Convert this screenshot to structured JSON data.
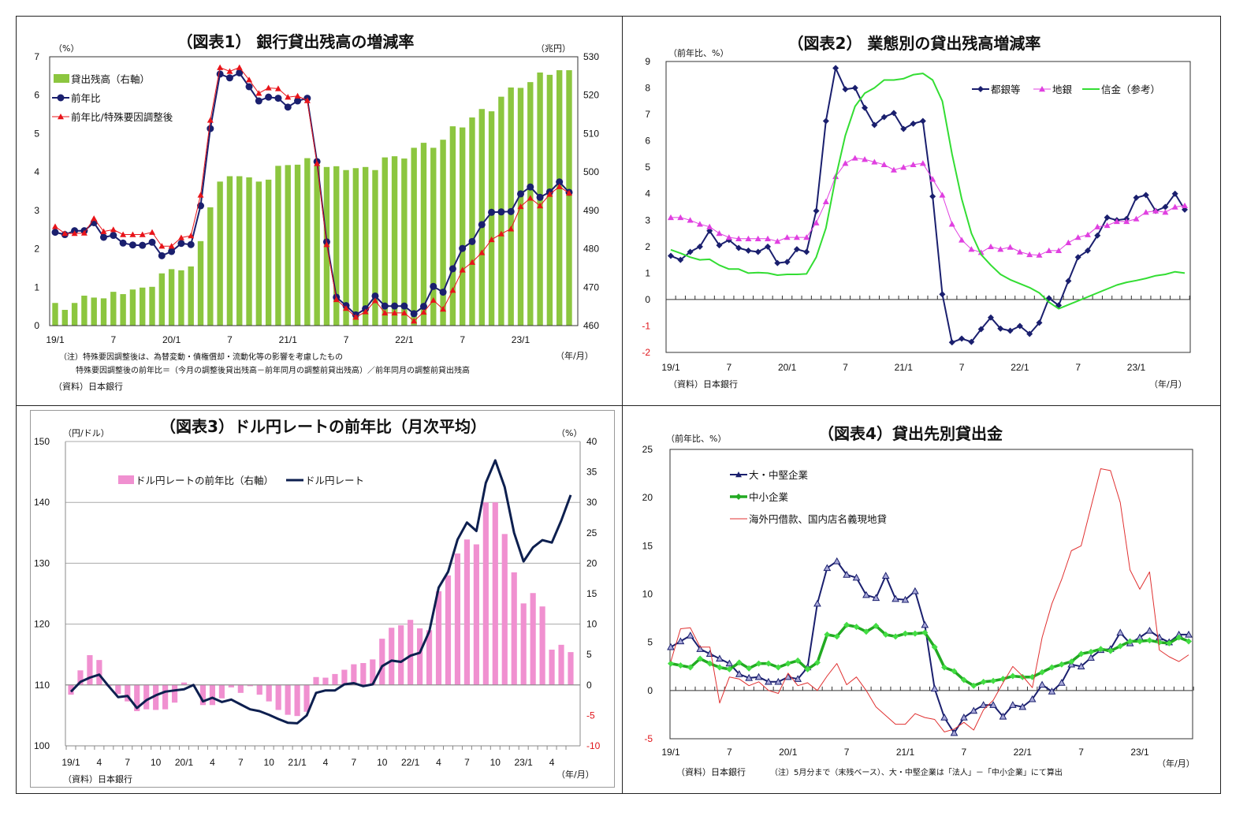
{
  "chart_data": [
    {
      "type": "bar+line",
      "title": "（図表1） 銀行貸出残高の増減率",
      "y_left_unit": "（%）",
      "y_right_unit": "（兆円）",
      "x_unit": "（年/月）",
      "ylim_left": [
        0,
        7
      ],
      "ylim_right": [
        460,
        530
      ],
      "y_left_ticks": [
        "0",
        "1",
        "2",
        "3",
        "4",
        "5",
        "6",
        "7"
      ],
      "y_right_ticks": [
        "460",
        "470",
        "480",
        "490",
        "500",
        "510",
        "520",
        "530"
      ],
      "x_tick_labels": [
        "19/1",
        "7",
        "20/1",
        "7",
        "21/1",
        "7",
        "22/1",
        "7",
        "23/1"
      ],
      "grid": false,
      "legend": "top-left",
      "x": [
        "19/1",
        "19/2",
        "19/3",
        "19/4",
        "19/5",
        "19/6",
        "19/7",
        "19/8",
        "19/9",
        "19/10",
        "19/11",
        "19/12",
        "20/1",
        "20/2",
        "20/3",
        "20/4",
        "20/5",
        "20/6",
        "20/7",
        "20/8",
        "20/9",
        "20/10",
        "20/11",
        "20/12",
        "21/1",
        "21/2",
        "21/3",
        "21/4",
        "21/5",
        "21/6",
        "21/7",
        "21/8",
        "21/9",
        "21/10",
        "21/11",
        "21/12",
        "22/1",
        "22/2",
        "22/3",
        "22/4",
        "22/5",
        "22/6",
        "22/7",
        "22/8",
        "22/9",
        "22/10",
        "22/11",
        "22/12",
        "23/1",
        "23/2",
        "23/3",
        "23/4",
        "23/5",
        "23/6"
      ],
      "series": [
        {
          "name": "貸出残高（右軸）",
          "type": "bar",
          "axis": "right",
          "color": "#8cc63f",
          "values": [
            465.9,
            464.1,
            465.9,
            467.8,
            467.3,
            467.1,
            468.8,
            468.2,
            469.4,
            469.9,
            470.1,
            473.6,
            474.7,
            474.4,
            475.4,
            482.0,
            490.8,
            497.5,
            498.9,
            498.9,
            498.6,
            497.5,
            498.0,
            501.6,
            501.8,
            501.9,
            503.6,
            501.7,
            501.3,
            501.5,
            500.5,
            501.0,
            501.3,
            500.5,
            503.8,
            504.1,
            503.5,
            506.3,
            507.6,
            506.3,
            508.4,
            511.9,
            511.6,
            514.2,
            516.4,
            515.8,
            519.6,
            522.0,
            521.9,
            523.4,
            525.9,
            525.3,
            526.5,
            526.5
          ]
        },
        {
          "name": "前年比",
          "type": "line",
          "axis": "left",
          "marker": "circle",
          "color": "#1a1f6e",
          "values": [
            2.43,
            2.37,
            2.47,
            2.47,
            2.68,
            2.3,
            2.35,
            2.15,
            2.1,
            2.09,
            2.17,
            1.82,
            1.93,
            2.14,
            2.11,
            3.12,
            5.13,
            6.55,
            6.45,
            6.58,
            6.22,
            5.85,
            5.95,
            5.92,
            5.69,
            5.85,
            5.92,
            4.27,
            2.18,
            0.74,
            0.52,
            0.28,
            0.44,
            0.77,
            0.51,
            0.51,
            0.51,
            0.31,
            0.5,
            1.02,
            0.87,
            1.48,
            2.01,
            2.19,
            2.63,
            2.95,
            2.96,
            2.97,
            3.43,
            3.61,
            3.34,
            3.48,
            3.74,
            3.47
          ]
        },
        {
          "name": "前年比/特殊要因調整後",
          "type": "line",
          "axis": "left",
          "marker": "triangle",
          "color": "#e8141a",
          "values": [
            2.58,
            2.4,
            2.4,
            2.41,
            2.79,
            2.45,
            2.5,
            2.37,
            2.37,
            2.37,
            2.43,
            2.07,
            2.07,
            2.29,
            2.34,
            3.4,
            5.35,
            6.72,
            6.62,
            6.72,
            6.4,
            6.05,
            6.19,
            6.17,
            5.95,
            5.98,
            5.86,
            4.22,
            2.11,
            0.68,
            0.45,
            0.22,
            0.36,
            0.65,
            0.33,
            0.33,
            0.33,
            0.12,
            0.35,
            0.66,
            0.43,
            0.92,
            1.45,
            1.65,
            1.9,
            2.24,
            2.39,
            2.52,
            3.1,
            3.32,
            3.12,
            3.42,
            3.62,
            3.45
          ]
        }
      ],
      "notes": [
        "（注）特殊要因調整後は、為替変動・債権償却・流動化等の影響を考慮したもの",
        "特殊要因調整後の前年比＝（今月の調整後貸出残高－前年同月の調整前貸出残高）／前年同月の調整前貸出残高"
      ],
      "source": "（資料）日本銀行"
    },
    {
      "type": "line",
      "title": "（図表2） 業態別の貸出残高増減率",
      "y_left_unit": "（前年比、%）",
      "x_unit": "（年/月）",
      "ylim_left": [
        -2,
        9
      ],
      "y_left_ticks": [
        "-2",
        "-1",
        "0",
        "1",
        "2",
        "3",
        "4",
        "5",
        "6",
        "7",
        "8",
        "9"
      ],
      "x_tick_labels": [
        "19/1",
        "7",
        "20/1",
        "7",
        "21/1",
        "7",
        "22/1",
        "7",
        "23/1"
      ],
      "grid": false,
      "legend": "top-right",
      "negative_label_color": "#e0141a",
      "x": [
        "19/1",
        "19/2",
        "19/3",
        "19/4",
        "19/5",
        "19/6",
        "19/7",
        "19/8",
        "19/9",
        "19/10",
        "19/11",
        "19/12",
        "20/1",
        "20/2",
        "20/3",
        "20/4",
        "20/5",
        "20/6",
        "20/7",
        "20/8",
        "20/9",
        "20/10",
        "20/11",
        "20/12",
        "21/1",
        "21/2",
        "21/3",
        "21/4",
        "21/5",
        "21/6",
        "21/7",
        "21/8",
        "21/9",
        "21/10",
        "21/11",
        "21/12",
        "22/1",
        "22/2",
        "22/3",
        "22/4",
        "22/5",
        "22/6",
        "22/7",
        "22/8",
        "22/9",
        "22/10",
        "22/11",
        "22/12",
        "23/1",
        "23/2",
        "23/3",
        "23/4",
        "23/5",
        "23/6"
      ],
      "series": [
        {
          "name": "都銀等",
          "type": "line",
          "marker": "diamond",
          "color": "#1a1f6e",
          "values": [
            1.65,
            1.5,
            1.8,
            2.0,
            2.6,
            2.05,
            2.25,
            1.95,
            1.85,
            1.8,
            2.0,
            1.38,
            1.42,
            1.9,
            1.8,
            3.35,
            6.75,
            8.75,
            7.95,
            8.0,
            7.25,
            6.6,
            6.9,
            7.05,
            6.45,
            6.65,
            6.75,
            3.9,
            0.2,
            -1.62,
            -1.48,
            -1.6,
            -1.12,
            -0.68,
            -1.1,
            -1.18,
            -1.0,
            -1.3,
            -0.88,
            0.05,
            -0.22,
            0.7,
            1.6,
            1.85,
            2.42,
            3.1,
            3.0,
            3.05,
            3.85,
            3.95,
            3.35,
            3.5,
            4.0,
            3.4
          ]
        },
        {
          "name": "地銀",
          "type": "line",
          "marker": "triangle",
          "color": "#e040e0",
          "values": [
            3.1,
            3.1,
            3.0,
            2.85,
            2.75,
            2.5,
            2.35,
            2.3,
            2.3,
            2.3,
            2.3,
            2.2,
            2.35,
            2.35,
            2.35,
            2.9,
            3.7,
            4.65,
            5.15,
            5.35,
            5.3,
            5.2,
            5.1,
            4.9,
            5.0,
            5.1,
            5.15,
            4.55,
            3.95,
            2.85,
            2.25,
            1.9,
            1.78,
            2.0,
            1.9,
            1.98,
            1.8,
            1.7,
            1.68,
            1.85,
            1.85,
            2.15,
            2.35,
            2.45,
            2.75,
            2.8,
            2.95,
            2.95,
            3.05,
            3.3,
            3.35,
            3.3,
            3.5,
            3.55
          ]
        },
        {
          "name": "信金（参考）",
          "type": "line",
          "marker": "none",
          "color": "#33dd33",
          "values": [
            1.88,
            1.75,
            1.6,
            1.5,
            1.52,
            1.3,
            1.15,
            1.15,
            1.0,
            1.02,
            1.0,
            0.92,
            0.95,
            0.95,
            0.97,
            1.6,
            2.7,
            4.6,
            6.2,
            7.3,
            7.8,
            8.0,
            8.3,
            8.3,
            8.35,
            8.5,
            8.55,
            8.3,
            7.5,
            5.5,
            3.8,
            2.5,
            1.7,
            1.3,
            0.95,
            0.75,
            0.6,
            0.45,
            0.25,
            -0.1,
            -0.35,
            -0.2,
            -0.05,
            0.1,
            0.25,
            0.4,
            0.55,
            0.65,
            0.72,
            0.8,
            0.9,
            0.95,
            1.05,
            1.0
          ]
        }
      ],
      "source": "（資料）日本銀行"
    },
    {
      "type": "bar+line",
      "title": "（図表3）ドル円レートの前年比（月次平均）",
      "y_left_unit": "（円/ドル）",
      "y_right_unit": "（%）",
      "x_unit": "（年/月）",
      "ylim_left": [
        100,
        150
      ],
      "ylim_right": [
        -10,
        40
      ],
      "y_left_ticks": [
        "100",
        "110",
        "120",
        "130",
        "140",
        "150"
      ],
      "y_right_ticks": [
        "-10",
        "-5",
        "0",
        "5",
        "10",
        "15",
        "20",
        "25",
        "30",
        "35",
        "40"
      ],
      "x_tick_labels": [
        "19/1",
        "4",
        "7",
        "10",
        "20/1",
        "4",
        "7",
        "10",
        "21/1",
        "4",
        "7",
        "10",
        "22/1",
        "4",
        "7",
        "10",
        "23/1",
        "4"
      ],
      "grid": true,
      "legend": "top-left",
      "negative_label_color": "#e0141a",
      "x": [
        "19/1",
        "19/2",
        "19/3",
        "19/4",
        "19/5",
        "19/6",
        "19/7",
        "19/8",
        "19/9",
        "19/10",
        "19/11",
        "19/12",
        "20/1",
        "20/2",
        "20/3",
        "20/4",
        "20/5",
        "20/6",
        "20/7",
        "20/8",
        "20/9",
        "20/10",
        "20/11",
        "20/12",
        "21/1",
        "21/2",
        "21/3",
        "21/4",
        "21/5",
        "21/6",
        "21/7",
        "21/8",
        "21/9",
        "21/10",
        "21/11",
        "21/12",
        "22/1",
        "22/2",
        "22/3",
        "22/4",
        "22/5",
        "22/6",
        "22/7",
        "22/8",
        "22/9",
        "22/10",
        "22/11",
        "22/12",
        "23/1",
        "23/2",
        "23/3",
        "23/4",
        "23/5",
        "23/6"
      ],
      "series": [
        {
          "name": "ドル円レートの前年比（右軸）",
          "type": "bar",
          "axis": "right",
          "color": "#f090d0",
          "values": [
            -1.6,
            2.4,
            4.9,
            4.1,
            -0.2,
            -1.5,
            -2.7,
            -4.3,
            -4.0,
            -4.1,
            -4.0,
            -2.9,
            0.4,
            -0.1,
            -3.3,
            -3.3,
            -2.2,
            -0.4,
            -1.3,
            -0.2,
            -1.6,
            -2.7,
            -4.1,
            -4.9,
            -5.1,
            -4.4,
            1.3,
            1.2,
            1.8,
            2.5,
            3.4,
            3.6,
            4.2,
            7.6,
            9.4,
            9.8,
            10.7,
            9.3,
            9.0,
            15.4,
            18.0,
            21.6,
            23.9,
            23.1,
            30.0,
            30.0,
            24.8,
            18.5,
            13.4,
            15.1,
            12.9,
            5.8,
            6.6,
            5.4
          ]
        },
        {
          "name": "ドル円レート",
          "type": "line",
          "axis": "left",
          "marker": "none",
          "color": "#0d1f4f",
          "values": [
            108.9,
            110.5,
            111.2,
            111.7,
            109.8,
            108.0,
            108.2,
            106.2,
            107.5,
            108.3,
            108.9,
            109.1,
            109.3,
            110.0,
            107.3,
            107.9,
            107.2,
            107.6,
            106.8,
            106.0,
            105.7,
            105.1,
            104.4,
            103.8,
            103.7,
            105.0,
            108.7,
            109.1,
            109.1,
            110.1,
            110.3,
            109.8,
            110.1,
            113.1,
            114.0,
            113.8,
            114.8,
            115.3,
            118.8,
            126.0,
            128.6,
            133.9,
            136.7,
            135.3,
            143.2,
            146.9,
            142.5,
            135.0,
            130.3,
            132.6,
            133.8,
            133.4,
            137.0,
            141.2
          ]
        }
      ],
      "source": "（資料）日本銀行"
    },
    {
      "type": "line",
      "title": "（図表4）貸出先別貸出金",
      "y_left_unit": "（前年比、%）",
      "x_unit": "（年/月）",
      "ylim_left": [
        -5,
        25
      ],
      "y_left_ticks": [
        "-5",
        "0",
        "5",
        "10",
        "15",
        "20",
        "25"
      ],
      "x_tick_labels": [
        "19/1",
        "7",
        "20/1",
        "7",
        "21/1",
        "7",
        "22/1",
        "7",
        "23/1"
      ],
      "grid": false,
      "legend": "top-left",
      "negative_label_color": "#e0141a",
      "x": [
        "19/1",
        "19/2",
        "19/3",
        "19/4",
        "19/5",
        "19/6",
        "19/7",
        "19/8",
        "19/9",
        "19/10",
        "19/11",
        "19/12",
        "20/1",
        "20/2",
        "20/3",
        "20/4",
        "20/5",
        "20/6",
        "20/7",
        "20/8",
        "20/9",
        "20/10",
        "20/11",
        "20/12",
        "21/1",
        "21/2",
        "21/3",
        "21/4",
        "21/5",
        "21/6",
        "21/7",
        "21/8",
        "21/9",
        "21/10",
        "21/11",
        "21/12",
        "22/1",
        "22/2",
        "22/3",
        "22/4",
        "22/5",
        "22/6",
        "22/7",
        "22/8",
        "22/9",
        "22/10",
        "22/11",
        "22/12",
        "23/1",
        "23/2",
        "23/3",
        "23/4",
        "23/5",
        "23/6"
      ],
      "series": [
        {
          "name": "大・中堅企業",
          "type": "line",
          "marker": "triangle",
          "color": "#1a1f6e",
          "values": [
            4.5,
            5.1,
            5.7,
            4.3,
            3.8,
            3.3,
            2.8,
            1.7,
            1.3,
            1.4,
            0.9,
            0.9,
            1.4,
            1.2,
            2.4,
            9.0,
            12.7,
            13.4,
            12.0,
            11.7,
            9.9,
            9.6,
            11.9,
            9.5,
            9.4,
            10.3,
            6.8,
            0.2,
            -2.8,
            -4.4,
            -2.8,
            -2.1,
            -1.5,
            -1.5,
            -2.7,
            -1.5,
            -1.7,
            -0.9,
            0.6,
            -0.1,
            0.8,
            2.7,
            2.5,
            3.4,
            4.2,
            4.3,
            6.0,
            4.9,
            5.5,
            6.2,
            5.5,
            5.0,
            5.8,
            5.8
          ]
        },
        {
          "name": "中小企業",
          "type": "line",
          "marker": "diamond",
          "color": "#22aa22",
          "values": [
            2.8,
            2.6,
            2.4,
            3.3,
            2.8,
            2.4,
            2.2,
            2.9,
            2.3,
            2.8,
            2.8,
            2.4,
            2.8,
            3.1,
            2.2,
            2.9,
            5.8,
            5.6,
            6.8,
            6.6,
            6.1,
            6.7,
            5.8,
            5.6,
            5.9,
            5.9,
            6.0,
            4.5,
            2.4,
            2.0,
            1.1,
            0.5,
            0.9,
            1.0,
            1.2,
            1.5,
            1.4,
            1.4,
            1.9,
            2.4,
            2.7,
            3.0,
            3.8,
            4.0,
            4.3,
            4.1,
            4.6,
            5.1,
            5.1,
            5.2,
            5.0,
            4.9,
            5.5,
            5.1
          ]
        },
        {
          "name": "海外円借款、国内店名義現地貸",
          "type": "line",
          "marker": "none",
          "color": "#e03030",
          "values": [
            3.0,
            6.4,
            6.5,
            4.5,
            4.5,
            -1.3,
            1.4,
            1.2,
            0.5,
            0.9,
            0.0,
            -0.3,
            1.8,
            0.5,
            0.8,
            0.0,
            1.5,
            2.8,
            0.6,
            1.4,
            0.0,
            -1.7,
            -2.6,
            -3.5,
            -3.5,
            -2.4,
            -2.8,
            -3.0,
            -4.3,
            -4.0,
            -3.3,
            -4.1,
            -2.0,
            -1.0,
            0.8,
            2.5,
            1.5,
            0.3,
            5.5,
            9.0,
            11.5,
            14.5,
            15.0,
            19.0,
            23.0,
            22.8,
            19.5,
            12.5,
            10.5,
            12.3,
            4.2,
            3.5,
            3.0,
            3.7
          ]
        }
      ],
      "source": "（資料）日本銀行",
      "notes": [
        "（注）5月分まで（末残ベース）、大・中堅企業は「法人」－「中小企業」にて算出"
      ]
    }
  ]
}
